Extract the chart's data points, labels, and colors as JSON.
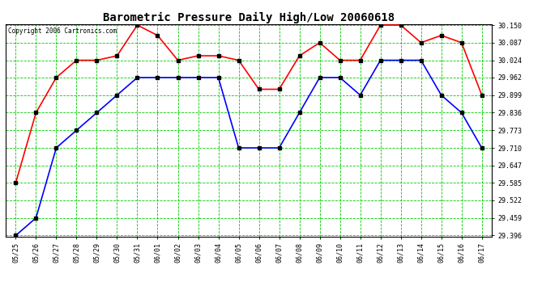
{
  "title": "Barometric Pressure Daily High/Low 20060618",
  "copyright": "Copyright 2006 Cartronics.com",
  "x_labels": [
    "05/25",
    "05/26",
    "05/27",
    "05/28",
    "05/29",
    "05/30",
    "05/31",
    "06/01",
    "06/02",
    "06/03",
    "06/04",
    "06/05",
    "06/06",
    "06/07",
    "06/08",
    "06/09",
    "06/10",
    "06/11",
    "06/12",
    "06/13",
    "06/14",
    "06/15",
    "06/16",
    "06/17"
  ],
  "high_values": [
    29.585,
    29.836,
    29.962,
    30.024,
    30.024,
    30.04,
    30.15,
    30.113,
    30.024,
    30.04,
    30.04,
    30.024,
    29.92,
    29.92,
    30.04,
    30.087,
    30.024,
    30.024,
    30.15,
    30.15,
    30.087,
    30.113,
    30.087,
    29.899
  ],
  "low_values": [
    29.396,
    29.459,
    29.71,
    29.773,
    29.836,
    29.899,
    29.962,
    29.962,
    29.962,
    29.962,
    29.962,
    29.71,
    29.71,
    29.71,
    29.836,
    29.962,
    29.962,
    29.899,
    30.024,
    30.024,
    30.024,
    29.899,
    29.836,
    29.71
  ],
  "high_color": "#ff0000",
  "low_color": "#0000ff",
  "bg_color": "#ffffff",
  "grid_color": "#00cc00",
  "marker_color": "#000000",
  "y_min": 29.396,
  "y_max": 30.15,
  "y_ticks": [
    29.396,
    29.459,
    29.522,
    29.585,
    29.647,
    29.71,
    29.773,
    29.836,
    29.899,
    29.962,
    30.024,
    30.087,
    30.15
  ],
  "title_fontsize": 10,
  "tick_fontsize": 6,
  "copyright_fontsize": 5.5,
  "linewidth": 1.2,
  "markersize": 3
}
